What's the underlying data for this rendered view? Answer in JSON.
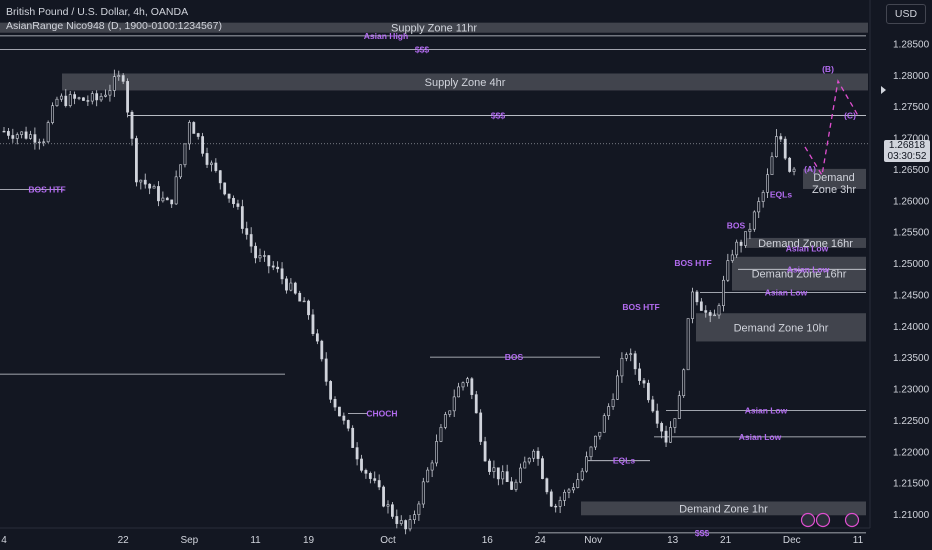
{
  "header": {
    "title": "British Pound / U.S. Dollar, 4h, OANDA",
    "indicator": "AsianRange Nico948 (D, 1900-0100:1234567)"
  },
  "currency_button": "USD",
  "current_price": "1.26818",
  "countdown": "03:30:52",
  "colors": {
    "background": "#131722",
    "candle": "#d1d4dc",
    "zone": "#4a4c55",
    "label_purple": "#b36cf0",
    "line": "#d1d4dc"
  },
  "chart_data": {
    "type": "candlestick",
    "instrument": "GBP/USD",
    "timeframe": "4h",
    "ylim": [
      1.2065,
      1.29
    ],
    "x_ticks": [
      "4",
      "22",
      "Sep",
      "11",
      "19",
      "Oct",
      "16",
      "24",
      "Nov",
      "13",
      "21",
      "Dec",
      "11"
    ],
    "y_ticks": [
      "1.28500",
      "1.28000",
      "1.27500",
      "1.27000",
      "1.26500",
      "1.26000",
      "1.25500",
      "1.25000",
      "1.24500",
      "1.24000",
      "1.23500",
      "1.23000",
      "1.22500",
      "1.22000",
      "1.21500",
      "1.21000"
    ],
    "path_points": [
      [
        "Aug 4",
        1.271
      ],
      [
        "Aug 10",
        1.27
      ],
      [
        "Aug 12",
        1.276
      ],
      [
        "Aug 18",
        1.276
      ],
      [
        "Aug 22",
        1.28
      ],
      [
        "Aug 24",
        1.264
      ],
      [
        "Aug 29",
        1.259
      ],
      [
        "Aug 31",
        1.267
      ],
      [
        "Sep 1",
        1.273
      ],
      [
        "Sep 4",
        1.266
      ],
      [
        "Sep 8",
        1.259
      ],
      [
        "Sep 11",
        1.251
      ],
      [
        "Sep 14",
        1.249
      ],
      [
        "Sep 19",
        1.242
      ],
      [
        "Sep 22",
        1.23
      ],
      [
        "Sep 27",
        1.218
      ],
      [
        "Oct 1",
        1.211
      ],
      [
        "Oct 4",
        1.207
      ],
      [
        "Oct 8",
        1.22
      ],
      [
        "Oct 11",
        1.229
      ],
      [
        "Oct 13",
        1.232
      ],
      [
        "Oct 16",
        1.218
      ],
      [
        "Oct 20",
        1.214
      ],
      [
        "Oct 23",
        1.221
      ],
      [
        "Oct 26",
        1.211
      ],
      [
        "Oct 30",
        1.216
      ],
      [
        "Nov 3",
        1.226
      ],
      [
        "Nov 6",
        1.236
      ],
      [
        "Nov 9",
        1.23
      ],
      [
        "Nov 12",
        1.222
      ],
      [
        "Nov 14",
        1.228
      ],
      [
        "Nov 16",
        1.246
      ],
      [
        "Nov 19",
        1.24
      ],
      [
        "Nov 22",
        1.252
      ],
      [
        "Nov 24",
        1.254
      ],
      [
        "Nov 27",
        1.262
      ],
      [
        "Nov 29",
        1.271
      ],
      [
        "Dec 1",
        1.264
      ],
      [
        "Dec 2",
        1.269
      ]
    ],
    "zones": [
      {
        "label": "Supply Zone 11hr",
        "top": 1.2883,
        "bottom": 1.2867
      },
      {
        "label": "Supply Zone 4hr",
        "top": 1.2802,
        "bottom": 1.2775
      },
      {
        "label": "Demand Zone 3hr",
        "top": 1.265,
        "bottom": 1.2618
      },
      {
        "label": "Demand Zone 16hr",
        "top": 1.254,
        "bottom": 1.253
      },
      {
        "label": "Demand Zone 16hr",
        "top": 1.251,
        "bottom": 1.2456
      },
      {
        "label": "Demand Zone 10hr",
        "top": 1.242,
        "bottom": 1.2375
      },
      {
        "label": "Demand Zone 1hr",
        "top": 1.212,
        "bottom": 1.2098
      }
    ],
    "annotations": [
      {
        "text": "Asian High",
        "price": 1.2862
      },
      {
        "text": "$$$",
        "price": 1.284
      },
      {
        "text": "$$$",
        "price": 1.2735
      },
      {
        "text": "BOS HTF",
        "price": 1.2617
      },
      {
        "text": "BOS",
        "price": 1.235
      },
      {
        "text": "CHOCH",
        "price": 1.226
      },
      {
        "text": "BOS HTF",
        "price": 1.243
      },
      {
        "text": "BOS HTF",
        "price": 1.25
      },
      {
        "text": "BOS",
        "price": 1.256
      },
      {
        "text": "EQLs",
        "price": 1.2185
      },
      {
        "text": "EQLs",
        "price": 1.26
      },
      {
        "text": "Asian Low",
        "price": 1.2265
      },
      {
        "text": "Asian Low",
        "price": 1.2223
      },
      {
        "text": "Asian Low",
        "price": 1.2453
      },
      {
        "text": "Asian Low",
        "price": 1.2523
      },
      {
        "text": "Asian Low",
        "price": 1.249
      },
      {
        "text": "$$$",
        "price": 1.207
      },
      {
        "text": "(A)",
        "price": 1.264
      },
      {
        "text": "(B)",
        "price": 1.279
      },
      {
        "text": "(C)",
        "price": 1.273
      }
    ]
  }
}
